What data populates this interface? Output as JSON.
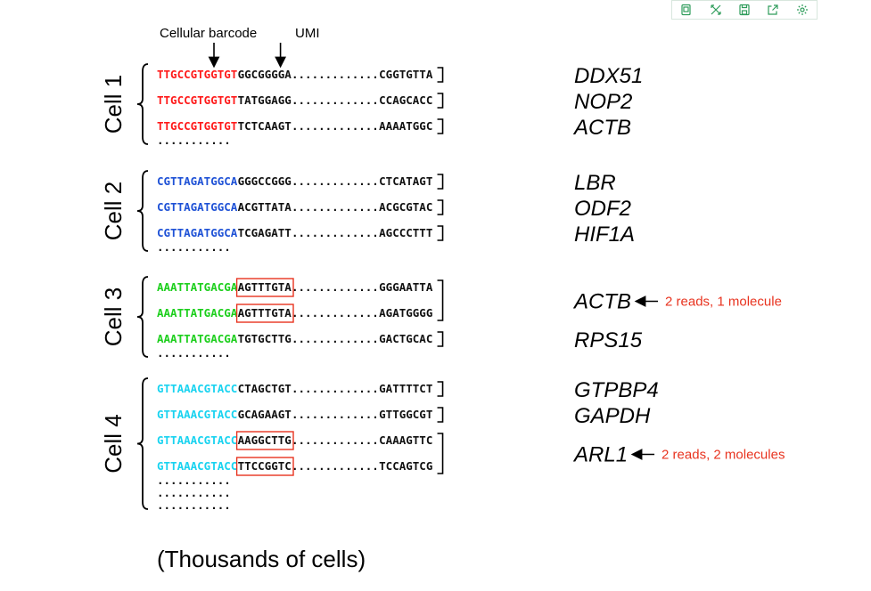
{
  "toolbar": {
    "buttons": [
      {
        "icon": "copy-icon"
      },
      {
        "icon": "shuffle-icon"
      },
      {
        "icon": "save-icon"
      },
      {
        "icon": "export-icon"
      },
      {
        "icon": "settings-icon"
      }
    ]
  },
  "header": {
    "barcode_label": "Cellular barcode",
    "umi_label": "UMI"
  },
  "dots": "...........",
  "separator": ".............",
  "footer": "(Thousands of cells)",
  "colors": {
    "cell1": "#ff1a1a",
    "cell2": "#1f52d6",
    "cell3": "#1dcf1d",
    "cell4": "#1ad3f0",
    "annotation": "#e8331f",
    "umi_box": "#e8331f"
  },
  "cells": [
    {
      "name": "Cell 1",
      "color_key": "cell1",
      "reads": [
        {
          "barcode": "TTGCCGTGGTGT",
          "umi": "GGCGGGGA",
          "tail": "CGGTGTTA",
          "boxed": false
        },
        {
          "barcode": "TTGCCGTGGTGT",
          "umi": "TATGGAGG",
          "tail": "CCAGCACC",
          "boxed": false
        },
        {
          "barcode": "TTGCCGTGGTGT",
          "umi": "TCTCAAGT",
          "tail": "AAAATGGC",
          "boxed": false
        }
      ],
      "genes": [
        {
          "name": "DDX51",
          "span": [
            0,
            0
          ]
        },
        {
          "name": "NOP2",
          "span": [
            1,
            1
          ]
        },
        {
          "name": "ACTB",
          "span": [
            2,
            2
          ]
        }
      ],
      "trailing_dots": 1
    },
    {
      "name": "Cell 2",
      "color_key": "cell2",
      "reads": [
        {
          "barcode": "CGTTAGATGGCA",
          "umi": "GGGCCGGG",
          "tail": "CTCATAGT",
          "boxed": false
        },
        {
          "barcode": "CGTTAGATGGCA",
          "umi": "ACGTTATA",
          "tail": "ACGCGTAC",
          "boxed": false
        },
        {
          "barcode": "CGTTAGATGGCA",
          "umi": "TCGAGATT",
          "tail": "AGCCCTTT",
          "boxed": false
        }
      ],
      "genes": [
        {
          "name": "LBR",
          "span": [
            0,
            0
          ]
        },
        {
          "name": "ODF2",
          "span": [
            1,
            1
          ]
        },
        {
          "name": "HIF1A",
          "span": [
            2,
            2
          ]
        }
      ],
      "trailing_dots": 1
    },
    {
      "name": "Cell 3",
      "color_key": "cell3",
      "reads": [
        {
          "barcode": "AAATTATGACGA",
          "umi": "AGTTTGTA",
          "tail": "GGGAATTA",
          "boxed": true
        },
        {
          "barcode": "AAATTATGACGA",
          "umi": "AGTTTGTA",
          "tail": "AGATGGGG",
          "boxed": true
        },
        {
          "barcode": "AAATTATGACGA",
          "umi": "TGTGCTTG",
          "tail": "GACTGCAC",
          "boxed": false
        }
      ],
      "genes": [
        {
          "name": "ACTB",
          "span": [
            0,
            1
          ],
          "annotation": "2 reads, 1 molecule"
        },
        {
          "name": "RPS15",
          "span": [
            2,
            2
          ]
        }
      ],
      "trailing_dots": 1
    },
    {
      "name": "Cell 4",
      "color_key": "cell4",
      "reads": [
        {
          "barcode": "GTTAAACGTACC",
          "umi": "CTAGCTGT",
          "tail": "GATTTTCT",
          "boxed": false
        },
        {
          "barcode": "GTTAAACGTACC",
          "umi": "GCAGAAGT",
          "tail": "GTTGGCGT",
          "boxed": false
        },
        {
          "barcode": "GTTAAACGTACC",
          "umi": "AAGGCTTG",
          "tail": "CAAAGTTC",
          "boxed": true
        },
        {
          "barcode": "GTTAAACGTACC",
          "umi": "TTCCGGTC",
          "tail": "TCCAGTCG",
          "boxed": true
        }
      ],
      "genes": [
        {
          "name": "GTPBP4",
          "span": [
            0,
            0
          ]
        },
        {
          "name": "GAPDH",
          "span": [
            1,
            1
          ]
        },
        {
          "name": "ARL1",
          "span": [
            2,
            3
          ],
          "annotation": "2 reads, 2 molecules"
        }
      ],
      "trailing_dots": 3
    }
  ]
}
